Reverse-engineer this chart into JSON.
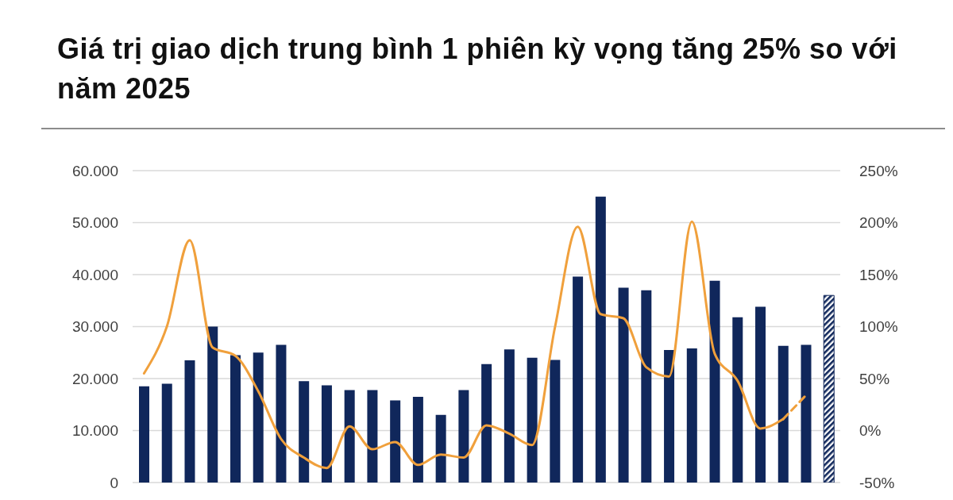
{
  "chart_data": {
    "type": "bar",
    "title": "Giá trị giao dịch trung bình 1 phiên kỳ vọng tăng 25% so với năm 2025",
    "categories": [
      null,
      null,
      null,
      null,
      null,
      null,
      null,
      null,
      null,
      null,
      null,
      null,
      null,
      null,
      null,
      null,
      null,
      null,
      null,
      null,
      null,
      null,
      null,
      null,
      null,
      null,
      null,
      null,
      null,
      null,
      null
    ],
    "series": [
      {
        "color": "#10275b",
        "values": [
          18500,
          19000,
          23500,
          30000,
          24500,
          25000,
          26500,
          19500,
          18700,
          17800,
          17800,
          15800,
          16500,
          13000,
          17800,
          22800,
          25600,
          24000,
          23600,
          39600,
          55000,
          37500,
          37000,
          25500,
          25800,
          38800,
          31800,
          33800,
          26300,
          26500,
          null
        ]
      },
      {
        "color": "#10275b",
        "values": [
          null,
          null,
          null,
          null,
          null,
          null,
          null,
          null,
          null,
          null,
          null,
          null,
          null,
          null,
          null,
          null,
          null,
          null,
          null,
          null,
          null,
          null,
          null,
          null,
          null,
          null,
          null,
          null,
          null,
          null,
          36000
        ]
      },
      {
        "type": "line",
        "axis": "y2",
        "color": "#f0a03c",
        "values": [
          55,
          100,
          183,
          80,
          72,
          38,
          -8,
          -26,
          -36,
          4,
          -18,
          -11,
          -33,
          -23,
          -26,
          5,
          -3,
          -14,
          99,
          196,
          112,
          108,
          61,
          52,
          201,
          74,
          48,
          2,
          11,
          null,
          null
        ]
      },
      {
        "type": "line",
        "axis": "y2",
        "color": "#f0a03c",
        "line_style": "dashed",
        "values": [
          null,
          null,
          null,
          null,
          null,
          null,
          null,
          null,
          null,
          null,
          null,
          null,
          null,
          null,
          null,
          null,
          null,
          null,
          null,
          null,
          null,
          null,
          null,
          null,
          null,
          null,
          null,
          null,
          11,
          34,
          null
        ]
      }
    ],
    "ylim": [
      0,
      60000
    ],
    "yticks": [
      0,
      {
        "value": 10000,
        "label": "10.000"
      },
      {
        "value": 20000,
        "label": "20.000"
      },
      {
        "value": 30000,
        "label": "30.000"
      },
      {
        "value": 40000,
        "label": "40.000"
      },
      {
        "value": 50000,
        "label": "50.000"
      },
      {
        "value": 60000,
        "label": "60.000"
      }
    ],
    "y2lim": [
      -50,
      250
    ],
    "y2ticks": [
      {
        "value": -50,
        "label": "-50%"
      },
      {
        "value": 0,
        "label": "0%"
      },
      {
        "value": 50,
        "label": "50%"
      },
      {
        "value": 100,
        "label": "100%"
      },
      {
        "value": 150,
        "label": "150%"
      },
      {
        "value": 200,
        "label": "200%"
      },
      {
        "value": 250,
        "label": "250%"
      }
    ],
    "grid": "y",
    "marker": "none",
    "line_style": "solid"
  }
}
